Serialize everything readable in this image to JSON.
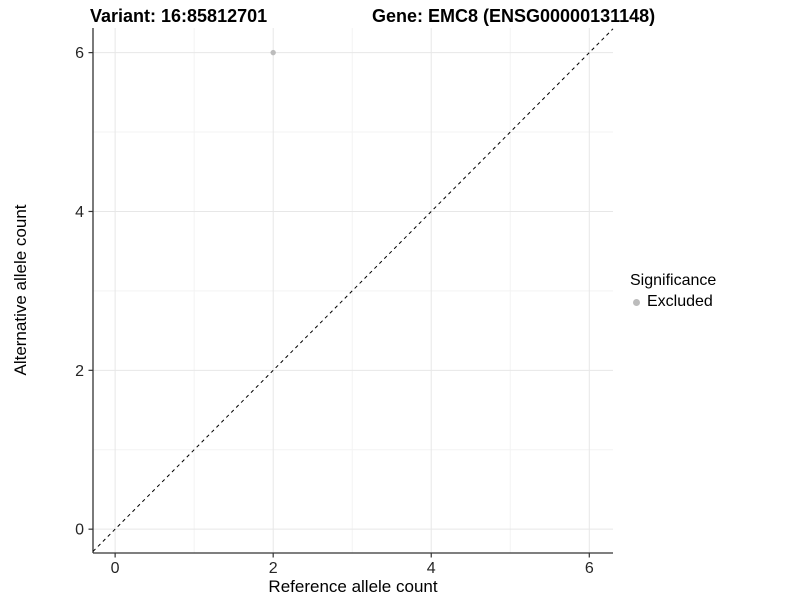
{
  "header": {
    "variant_title": "Variant: 16:85812701",
    "gene_title": "Gene: EMC8 (ENSG00000131148)"
  },
  "legend": {
    "title": "Significance",
    "items": [
      {
        "label": "Excluded",
        "color": "#bcbcbc",
        "marker": "circle"
      }
    ]
  },
  "chart_data": {
    "type": "scatter",
    "title": "Variant: 16:85812701   Gene: EMC8 (ENSG00000131148)",
    "xlabel": "Reference allele count",
    "ylabel": "Alternative allele count",
    "xlim": [
      -0.28,
      6.3
    ],
    "ylim": [
      -0.3,
      6.31
    ],
    "xticks": [
      "0",
      "2",
      "4",
      "6"
    ],
    "xtick_values": [
      0,
      2,
      4,
      6
    ],
    "yticks": [
      "0",
      "2",
      "4",
      "6"
    ],
    "ytick_values": [
      0,
      2,
      4,
      6
    ],
    "minor_xticks": [
      1,
      3,
      5
    ],
    "minor_yticks": [
      1,
      3,
      5
    ],
    "grid": true,
    "legend_position": "right",
    "series": [
      {
        "name": "Excluded",
        "color": "#bcbcbc",
        "marker_radius": 2.7,
        "points": [
          [
            2,
            6
          ]
        ]
      }
    ],
    "reference_line": {
      "kind": "identity",
      "style": "dashed",
      "color": "#000000",
      "from": [
        -0.28,
        -0.28
      ],
      "to": [
        6.3,
        6.3
      ]
    },
    "colors": {
      "grid_major": "#e7e7e7",
      "grid_minor": "#f3f3f3",
      "axis": "#333333",
      "tick_text": "#262626",
      "background": "#ffffff"
    }
  }
}
